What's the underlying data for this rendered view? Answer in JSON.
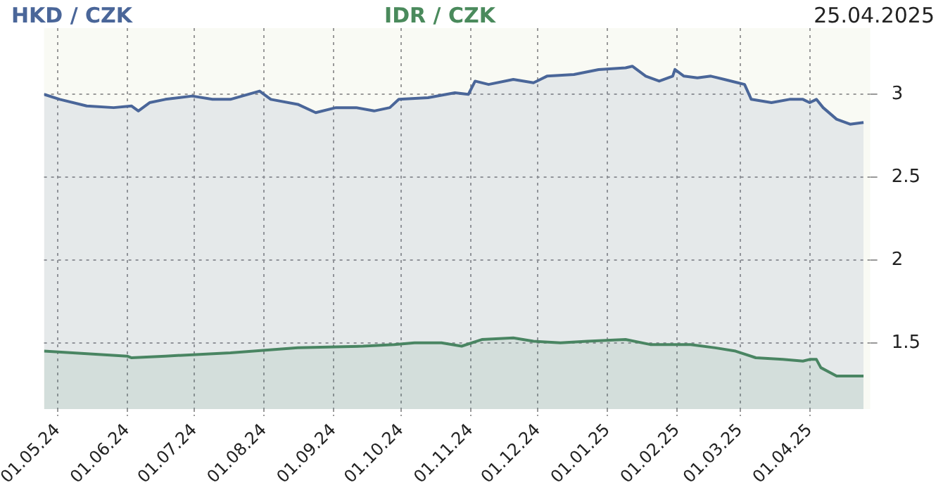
{
  "chart_data": {
    "type": "area",
    "title": "25.04.2025",
    "legend": "top",
    "grid": true,
    "marker": "none",
    "line_style": "solid",
    "xlim": [
      "2024-04-25",
      "2025-04-28"
    ],
    "ylim": [
      1.1,
      3.4
    ],
    "xticks": [
      {
        "value": "2024-05-01",
        "label": "01.05.24"
      },
      {
        "value": "2024-06-01",
        "label": "01.06.24"
      },
      {
        "value": "2024-07-01",
        "label": "01.07.24"
      },
      {
        "value": "2024-08-01",
        "label": "01.08.24"
      },
      {
        "value": "2024-09-01",
        "label": "01.09.24"
      },
      {
        "value": "2024-10-01",
        "label": "01.10.24"
      },
      {
        "value": "2024-11-01",
        "label": "01.11.24"
      },
      {
        "value": "2024-12-01",
        "label": "01.12.24"
      },
      {
        "value": "2025-01-01",
        "label": "01.01.25"
      },
      {
        "value": "2025-02-01",
        "label": "01.02.25"
      },
      {
        "value": "2025-03-01",
        "label": "01.03.25"
      },
      {
        "value": "2025-04-01",
        "label": "01.04.25"
      }
    ],
    "yticks": [
      1.5,
      2,
      2.5,
      3
    ],
    "series": [
      {
        "name": "HKD / CZK",
        "color": "#4a6699",
        "x": [
          "2024-04-25",
          "2024-05-02",
          "2024-05-14",
          "2024-05-26",
          "2024-06-03",
          "2024-06-06",
          "2024-06-11",
          "2024-06-18",
          "2024-06-30",
          "2024-07-09",
          "2024-07-17",
          "2024-07-30",
          "2024-08-04",
          "2024-08-16",
          "2024-08-24",
          "2024-09-02",
          "2024-09-11",
          "2024-09-19",
          "2024-09-26",
          "2024-09-30",
          "2024-10-13",
          "2024-10-25",
          "2024-10-31",
          "2024-11-03",
          "2024-11-09",
          "2024-11-20",
          "2024-11-29",
          "2024-12-05",
          "2024-12-17",
          "2024-12-28",
          "2025-01-09",
          "2025-01-12",
          "2025-01-18",
          "2025-01-24",
          "2025-01-30",
          "2025-01-31",
          "2025-02-04",
          "2025-02-10",
          "2025-02-16",
          "2025-02-22",
          "2025-02-28",
          "2025-03-03",
          "2025-03-06",
          "2025-03-15",
          "2025-03-23",
          "2025-03-29",
          "2025-04-01",
          "2025-04-04",
          "2025-04-07",
          "2025-04-13",
          "2025-04-19",
          "2025-04-25"
        ],
        "values": [
          3.0,
          2.97,
          2.93,
          2.92,
          2.93,
          2.9,
          2.95,
          2.97,
          2.99,
          2.97,
          2.97,
          3.02,
          2.97,
          2.94,
          2.89,
          2.92,
          2.92,
          2.9,
          2.92,
          2.97,
          2.98,
          3.01,
          3.0,
          3.08,
          3.06,
          3.09,
          3.07,
          3.11,
          3.12,
          3.15,
          3.16,
          3.17,
          3.11,
          3.08,
          3.11,
          3.15,
          3.11,
          3.1,
          3.11,
          3.09,
          3.07,
          3.06,
          2.97,
          2.95,
          2.97,
          2.97,
          2.95,
          2.97,
          2.92,
          2.85,
          2.82,
          2.83
        ]
      },
      {
        "name": "IDR / CZK",
        "color": "#4a8a5c",
        "x": [
          "2024-04-25",
          "2024-06-01",
          "2024-06-03",
          "2024-06-18",
          "2024-07-17",
          "2024-08-16",
          "2024-09-14",
          "2024-09-28",
          "2024-10-07",
          "2024-10-19",
          "2024-10-28",
          "2024-11-06",
          "2024-11-20",
          "2024-11-29",
          "2024-12-11",
          "2024-12-23",
          "2025-01-09",
          "2025-01-20",
          "2025-02-07",
          "2025-02-18",
          "2025-02-27",
          "2025-03-08",
          "2025-03-20",
          "2025-03-29",
          "2025-04-01",
          "2025-04-04",
          "2025-04-06",
          "2025-04-13",
          "2025-04-25"
        ],
        "values": [
          1.45,
          1.42,
          1.41,
          1.42,
          1.44,
          1.47,
          1.48,
          1.49,
          1.5,
          1.5,
          1.48,
          1.52,
          1.53,
          1.51,
          1.5,
          1.51,
          1.52,
          1.49,
          1.49,
          1.47,
          1.45,
          1.41,
          1.4,
          1.39,
          1.4,
          1.4,
          1.35,
          1.3,
          1.3
        ]
      }
    ]
  }
}
